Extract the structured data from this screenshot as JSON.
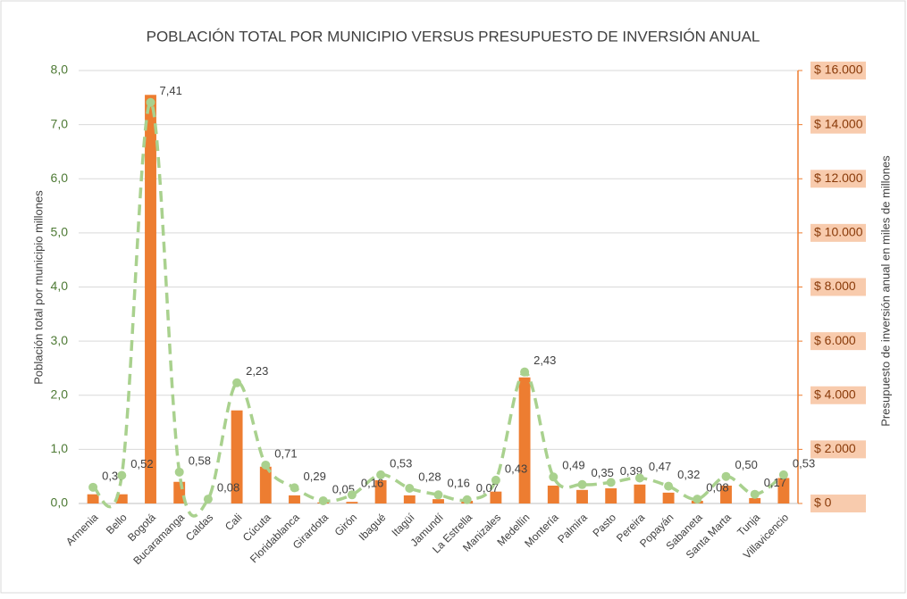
{
  "chart_data": {
    "type": "bar_line",
    "title": "POBLACIÓN TOTAL POR MUNICIPIO VERSUS PRESUPUESTO DE INVERSIÓN ANUAL",
    "ylabel": "Población total por municipio millones",
    "y2label": "Presupuesto de inversión anual en miles de millones",
    "categories": [
      "Armenia",
      "Bello",
      "Bogotá",
      "Bucaramanga",
      "Caldas",
      "Cali",
      "Cúcuta",
      "Floridablanca",
      "Girardota",
      "Girón",
      "Ibagué",
      "Itagüí",
      "Jamundí",
      "La Estrella",
      "Manizales",
      "Medellín",
      "Montería",
      "Palmira",
      "Pasto",
      "Pereira",
      "Popayán",
      "Sabaneta",
      "Santa Marta",
      "Tunja",
      "Villavicencio"
    ],
    "series": [
      {
        "kind": "bar",
        "axis": "y2",
        "color": "#ed7d31",
        "values": [
          340,
          340,
          15100,
          800,
          0,
          3440,
          1360,
          300,
          40,
          60,
          860,
          300,
          160,
          100,
          440,
          4660,
          660,
          500,
          560,
          700,
          400,
          100,
          660,
          200,
          940
        ]
      },
      {
        "kind": "line",
        "axis": "y",
        "color": "#a9d18e",
        "values": [
          0.3,
          0.52,
          7.41,
          0.58,
          0.08,
          2.23,
          0.71,
          0.29,
          0.05,
          0.16,
          0.53,
          0.28,
          0.16,
          0.07,
          0.43,
          2.43,
          0.49,
          0.35,
          0.39,
          0.47,
          0.32,
          0.08,
          0.5,
          0.17,
          0.53
        ],
        "value_labels": [
          "0,30",
          "0,52",
          "7,41",
          "0,58",
          "0,08",
          "2,23",
          "0,71",
          "0,29",
          "0,05",
          "0,16",
          "0,53",
          "0,28",
          "0,16",
          "0,07",
          "0,43",
          "2,43",
          "0,49",
          "0,35",
          "0,39",
          "0,47",
          "0,32",
          "0,08",
          "0,50",
          "0,17",
          "0,53"
        ]
      }
    ],
    "ylim": [
      0,
      8
    ],
    "yticks": [
      {
        "value": 0,
        "label": "0,0"
      },
      {
        "value": 1,
        "label": "1,0"
      },
      {
        "value": 2,
        "label": "2,0"
      },
      {
        "value": 3,
        "label": "3,0"
      },
      {
        "value": 4,
        "label": "4,0"
      },
      {
        "value": 5,
        "label": "5,0"
      },
      {
        "value": 6,
        "label": "6,0"
      },
      {
        "value": 7,
        "label": "7,0"
      },
      {
        "value": 8,
        "label": "8,0"
      }
    ],
    "y2lim": [
      0,
      16000
    ],
    "y2ticks": [
      {
        "value": 0,
        "label": "$ 0"
      },
      {
        "value": 2000,
        "label": "$ 2.000"
      },
      {
        "value": 4000,
        "label": "$ 4.000"
      },
      {
        "value": 6000,
        "label": "$ 6.000"
      },
      {
        "value": 8000,
        "label": "$ 8.000"
      },
      {
        "value": 10000,
        "label": "$ 10.000"
      },
      {
        "value": 12000,
        "label": "$ 12.000"
      },
      {
        "value": 14000,
        "label": "$ 14.000"
      },
      {
        "value": 16000,
        "label": "$ 16.000"
      }
    ],
    "grid": true
  }
}
